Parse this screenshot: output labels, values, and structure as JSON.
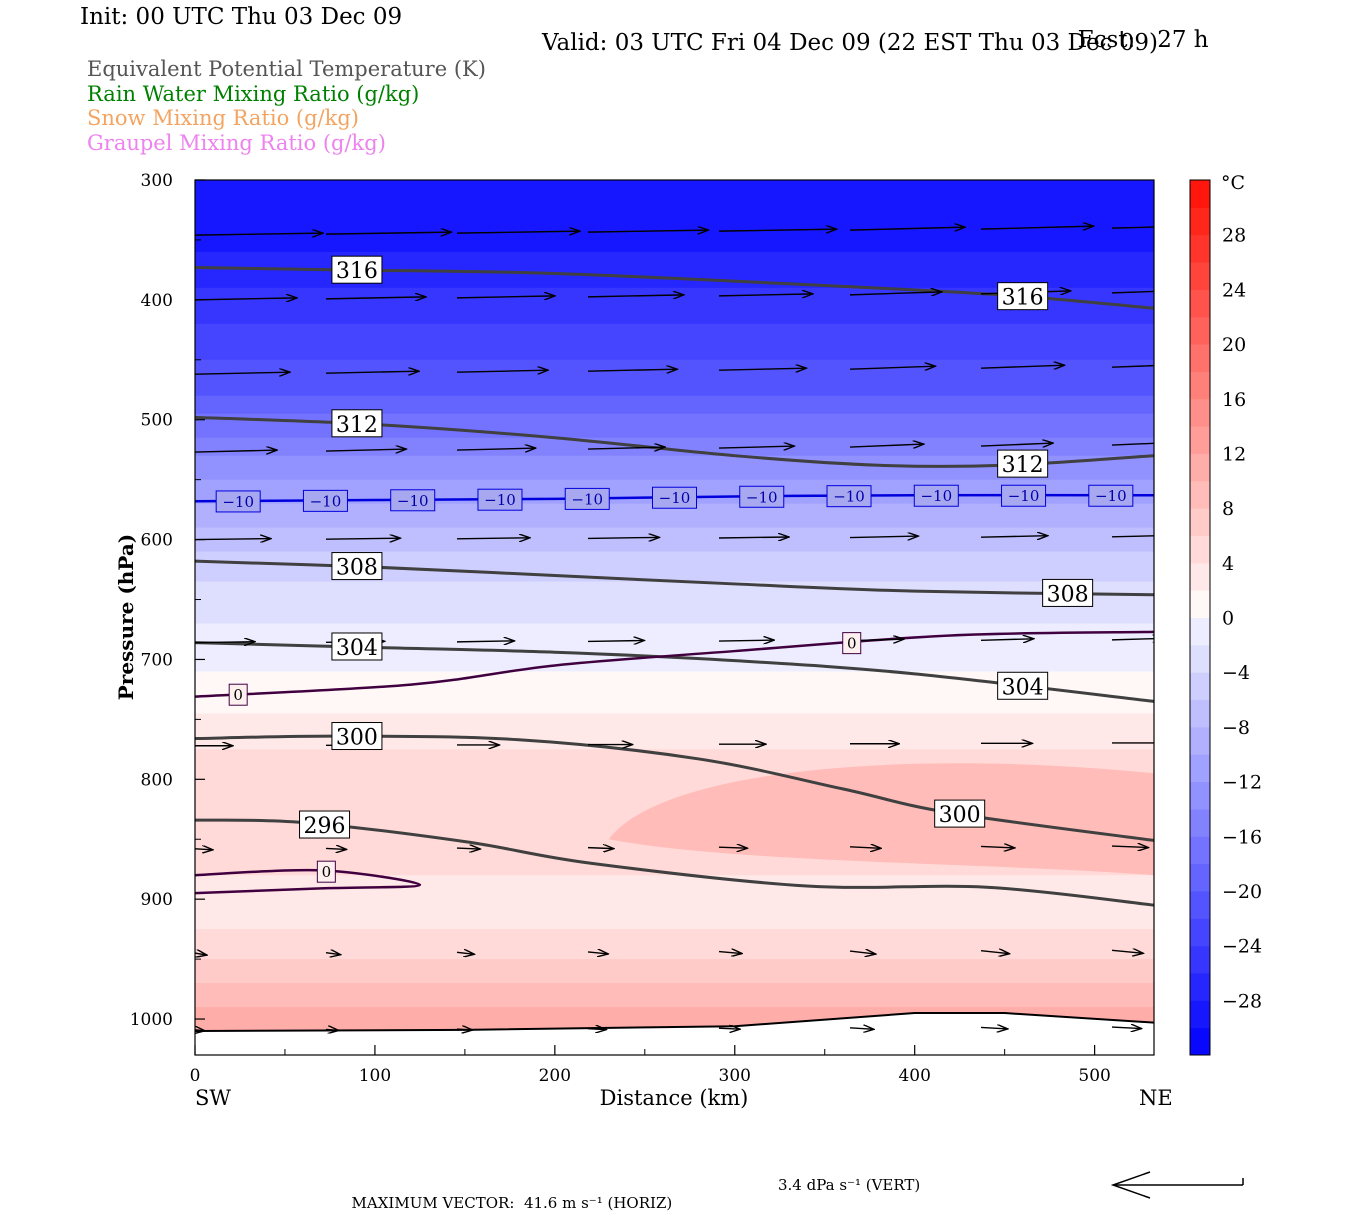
{
  "header": {
    "init": "Init: 00 UTC Thu 03 Dec 09",
    "fcst_label": "Fcst:",
    "fcst_value": "27 h",
    "valid": "Valid: 03 UTC Fri 04 Dec 09 (22 EST Thu 03 Dec 09)"
  },
  "legend": [
    {
      "label": "Equivalent Potential Temperature (K)",
      "color": "#555555"
    },
    {
      "label": "Rain Water Mixing Ratio (g/kg)",
      "color": "#008000"
    },
    {
      "label": "Snow Mixing Ratio (g/kg)",
      "color": "#f4a460"
    },
    {
      "label": "Graupel Mixing Ratio (g/kg)",
      "color": "#ee82ee"
    }
  ],
  "footer": {
    "prefix": "MAXIMUM VECTOR:",
    "horiz": "41.6 m s⁻¹ (HORIZ)",
    "vert": "3.4 dPa s⁻¹ (VERT)"
  },
  "chart_data": {
    "type": "contour",
    "xlabel": "Distance (km)",
    "ylabel": "Pressure (hPa)",
    "xlim": [
      0,
      533
    ],
    "ylim": [
      1030,
      300
    ],
    "x_ticks": [
      "0",
      "100",
      "200",
      "300",
      "400",
      "500"
    ],
    "x_tick_values": [
      0,
      100,
      200,
      300,
      400,
      500
    ],
    "y_ticks": [
      "300",
      "400",
      "500",
      "600",
      "700",
      "800",
      "900",
      "1000"
    ],
    "y_tick_values": [
      300,
      400,
      500,
      600,
      700,
      800,
      900,
      1000
    ],
    "x_end_labels": {
      "left": "SW",
      "right": "NE"
    },
    "colorbar": {
      "unit": "°C",
      "labels": [
        "28",
        "24",
        "20",
        "16",
        "12",
        "8",
        "4",
        "0",
        "−4",
        "−8",
        "−12",
        "−16",
        "−20",
        "−24",
        "−28"
      ],
      "values": [
        28,
        24,
        20,
        16,
        12,
        8,
        4,
        0,
        -4,
        -8,
        -12,
        -16,
        -20,
        -24,
        -28
      ],
      "min": -32,
      "max": 32,
      "step": 2
    },
    "theta_e_contours": [
      {
        "label": "316",
        "points": [
          [
            0,
            373
          ],
          [
            80,
            375
          ],
          [
            200,
            378
          ],
          [
            350,
            388
          ],
          [
            450,
            396
          ],
          [
            533,
            407
          ]
        ]
      },
      {
        "label": "312",
        "points": [
          [
            0,
            498
          ],
          [
            100,
            504
          ],
          [
            200,
            515
          ],
          [
            300,
            530
          ],
          [
            380,
            538
          ],
          [
            450,
            538
          ],
          [
            533,
            530
          ]
        ]
      },
      {
        "label": "308",
        "points": [
          [
            0,
            618
          ],
          [
            100,
            623
          ],
          [
            200,
            630
          ],
          [
            300,
            637
          ],
          [
            400,
            643
          ],
          [
            533,
            646
          ]
        ]
      },
      {
        "label": "304",
        "points": [
          [
            0,
            686
          ],
          [
            100,
            690
          ],
          [
            200,
            694
          ],
          [
            300,
            701
          ],
          [
            400,
            712
          ],
          [
            533,
            735
          ]
        ]
      },
      {
        "label": "300",
        "points": [
          [
            0,
            766
          ],
          [
            80,
            764
          ],
          [
            180,
            767
          ],
          [
            280,
            783
          ],
          [
            360,
            808
          ],
          [
            420,
            828
          ],
          [
            533,
            851
          ]
        ]
      },
      {
        "label": "296",
        "points": [
          [
            0,
            834
          ],
          [
            60,
            836
          ],
          [
            150,
            852
          ],
          [
            220,
            870
          ],
          [
            340,
            889
          ],
          [
            440,
            890
          ],
          [
            533,
            905
          ]
        ]
      }
    ],
    "temperature_contours": [
      {
        "label": "−10",
        "points": [
          [
            0,
            568
          ],
          [
            100,
            567
          ],
          [
            200,
            566
          ],
          [
            300,
            564
          ],
          [
            400,
            563
          ],
          [
            533,
            563
          ]
        ]
      },
      {
        "label": "0",
        "points": [
          [
            0,
            731
          ],
          [
            120,
            721
          ],
          [
            200,
            705
          ],
          [
            300,
            693
          ],
          [
            420,
            680
          ],
          [
            533,
            677
          ]
        ]
      },
      {
        "label": "0",
        "points": [
          [
            0,
            880
          ],
          [
            70,
            876
          ],
          [
            125,
            888
          ],
          [
            70,
            891
          ],
          [
            0,
            895
          ]
        ]
      }
    ],
    "temperature_field": [
      {
        "p": 300,
        "t": -30
      },
      {
        "p": 360,
        "t": -28
      },
      {
        "p": 420,
        "t": -24
      },
      {
        "p": 480,
        "t": -20
      },
      {
        "p": 530,
        "t": -14
      },
      {
        "p": 570,
        "t": -10
      },
      {
        "p": 610,
        "t": -6
      },
      {
        "p": 650,
        "t": -3
      },
      {
        "p": 690,
        "t": -1
      },
      {
        "p": 730,
        "t": 1
      },
      {
        "p": 790,
        "t": 5
      },
      {
        "p": 860,
        "t": 6
      },
      {
        "p": 900,
        "t": 2
      },
      {
        "p": 940,
        "t": 5
      },
      {
        "p": 990,
        "t": 10
      },
      {
        "p": 1012,
        "t": 12
      }
    ],
    "warm_core": {
      "label": "",
      "x": [
        230,
        533
      ],
      "p": [
        795,
        880
      ],
      "t": 8
    },
    "terrain": [
      [
        0,
        1010
      ],
      [
        150,
        1009
      ],
      [
        300,
        1006
      ],
      [
        400,
        995
      ],
      [
        450,
        995
      ],
      [
        533,
        1003
      ]
    ]
  }
}
